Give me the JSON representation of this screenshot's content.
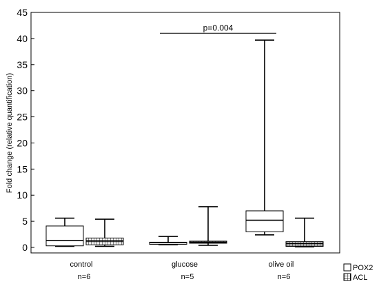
{
  "chart_data": {
    "type": "boxplot",
    "title": "",
    "xlabel": "",
    "ylabel": "Fold change (relative quantification)",
    "ylim": [
      0,
      45
    ],
    "yticks": [
      0,
      5,
      10,
      15,
      20,
      25,
      30,
      35,
      40,
      45
    ],
    "grid": false,
    "legend_position": "bottom-right",
    "categories": [
      {
        "label": "control",
        "n": "n=6"
      },
      {
        "label": "glucose",
        "n": "n=5"
      },
      {
        "label": "olive oil",
        "n": "n=6"
      }
    ],
    "series": [
      {
        "name": "POX2",
        "pattern": "open",
        "boxes": [
          {
            "min": 0.2,
            "q1": 0.3,
            "median": 1.3,
            "q3": 4.1,
            "max": 5.6
          },
          {
            "min": 0.5,
            "q1": 0.6,
            "median": 0.9,
            "q3": 1.0,
            "max": 2.1
          },
          {
            "min": 2.4,
            "q1": 3.0,
            "median": 5.2,
            "q3": 7.0,
            "max": 39.7
          }
        ]
      },
      {
        "name": "ACL",
        "pattern": "grid",
        "boxes": [
          {
            "min": 0.2,
            "q1": 0.5,
            "median": 1.2,
            "q3": 1.8,
            "max": 5.4
          },
          {
            "min": 0.4,
            "q1": 0.8,
            "median": 1.0,
            "q3": 1.2,
            "max": 7.8
          },
          {
            "min": 0.1,
            "q1": 0.2,
            "median": 0.7,
            "q3": 1.1,
            "max": 5.6
          }
        ]
      }
    ],
    "annotations": [
      {
        "text": "p=0.004",
        "from_category": 1,
        "to_category": 2,
        "y": 41
      }
    ]
  }
}
